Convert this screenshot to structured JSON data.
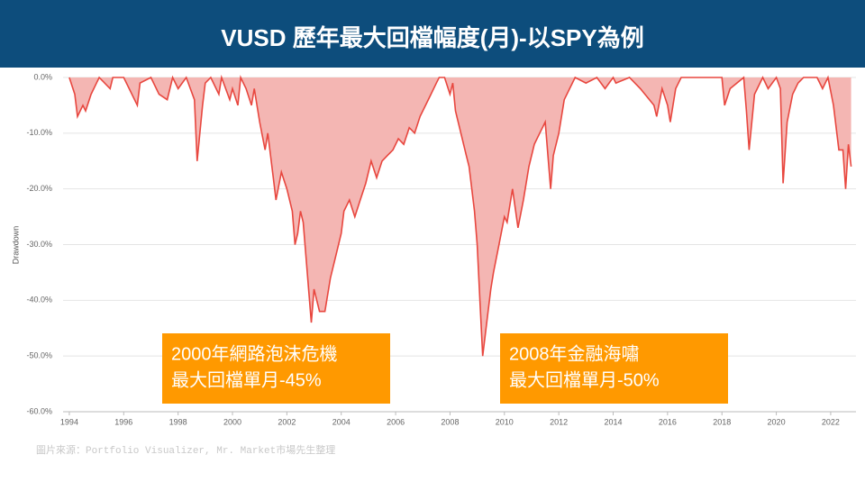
{
  "chart_data": {
    "type": "area",
    "title": "VUSD 歷年最大回檔幅度(月)-以SPY為例",
    "ylabel": "Drawdown",
    "source": "圖片來源：Portfolio Visualizer, Mr. Market市場先生整理",
    "annotations": [
      {
        "lines": [
          "2000年網路泡沫危機",
          "最大回檔單月-45%"
        ]
      },
      {
        "lines": [
          "2008年金融海嘯",
          "最大回檔單月-50%"
        ]
      }
    ],
    "color": "#e8473f",
    "fill": "#f4b6b3",
    "grid": true,
    "xlim": [
      1993.77,
      2022.93
    ],
    "xticks": [
      1994,
      1996,
      1998,
      2000,
      2002,
      2004,
      2006,
      2008,
      2010,
      2012,
      2014,
      2016,
      2018,
      2020,
      2022
    ],
    "ylim": [
      -60,
      0
    ],
    "yticks": [
      {
        "value": 0,
        "label": "0.0%"
      },
      {
        "value": -10,
        "label": "-10.0%"
      },
      {
        "value": -20,
        "label": "-20.0%"
      },
      {
        "value": -30,
        "label": "-30.0%"
      },
      {
        "value": -40,
        "label": "-40.0%"
      },
      {
        "value": -50,
        "label": "-50.0%"
      },
      {
        "value": -60,
        "label": "-60.0%"
      }
    ],
    "x": [
      1994.0,
      1994.2,
      1994.3,
      1994.5,
      1994.6,
      1994.8,
      1995.0,
      1995.1,
      1995.5,
      1995.6,
      1996.0,
      1996.5,
      1996.6,
      1997.0,
      1997.3,
      1997.6,
      1997.8,
      1998.0,
      1998.3,
      1998.6,
      1998.7,
      1998.9,
      1999.0,
      1999.2,
      1999.5,
      1999.6,
      1999.9,
      2000.0,
      2000.2,
      2000.3,
      2000.5,
      2000.7,
      2000.8,
      2001.0,
      2001.2,
      2001.3,
      2001.5,
      2001.6,
      2001.8,
      2002.0,
      2002.2,
      2002.3,
      2002.4,
      2002.5,
      2002.6,
      2002.7,
      2002.8,
      2002.9,
      2003.0,
      2003.2,
      2003.4,
      2003.6,
      2003.8,
      2004.0,
      2004.1,
      2004.3,
      2004.5,
      2004.7,
      2004.9,
      2005.1,
      2005.3,
      2005.5,
      2005.7,
      2005.9,
      2006.1,
      2006.3,
      2006.5,
      2006.7,
      2006.9,
      2007.1,
      2007.3,
      2007.5,
      2007.6,
      2007.8,
      2008.0,
      2008.1,
      2008.2,
      2008.4,
      2008.6,
      2008.7,
      2008.9,
      2009.0,
      2009.1,
      2009.2,
      2009.4,
      2009.5,
      2009.6,
      2009.8,
      2010.0,
      2010.1,
      2010.3,
      2010.5,
      2010.7,
      2010.9,
      2011.1,
      2011.3,
      2011.5,
      2011.7,
      2011.8,
      2012.0,
      2012.2,
      2012.4,
      2012.6,
      2013.0,
      2013.4,
      2013.7,
      2014.0,
      2014.1,
      2014.6,
      2015.0,
      2015.5,
      2015.6,
      2015.8,
      2016.0,
      2016.1,
      2016.3,
      2016.5,
      2017.0,
      2018.0,
      2018.1,
      2018.3,
      2018.8,
      2018.9,
      2019.0,
      2019.2,
      2019.5,
      2019.7,
      2020.0,
      2020.15,
      2020.25,
      2020.4,
      2020.6,
      2020.8,
      2021.0,
      2021.5,
      2021.7,
      2021.9,
      2022.1,
      2022.3,
      2022.45,
      2022.55,
      2022.65,
      2022.75
    ],
    "values": [
      0,
      -3,
      -7,
      -5,
      -6,
      -3,
      -1,
      0,
      -2,
      0,
      0,
      -5,
      -1,
      0,
      -3,
      -4,
      0,
      -2,
      0,
      -4,
      -15,
      -5,
      -1,
      0,
      -3,
      0,
      -4,
      -2,
      -5,
      0,
      -2,
      -5,
      -2,
      -8,
      -13,
      -10,
      -18,
      -22,
      -17,
      -20,
      -24,
      -30,
      -28,
      -24,
      -26,
      -32,
      -38,
      -44,
      -38,
      -42,
      -42,
      -36,
      -32,
      -28,
      -24,
      -22,
      -25,
      -22,
      -19,
      -15,
      -18,
      -15,
      -14,
      -13,
      -11,
      -12,
      -9,
      -10,
      -7,
      -5,
      -3,
      -1,
      0,
      0,
      -3,
      -1,
      -6,
      -10,
      -14,
      -16,
      -24,
      -30,
      -40,
      -50,
      -42,
      -38,
      -35,
      -30,
      -25,
      -26,
      -20,
      -27,
      -22,
      -16,
      -12,
      -10,
      -8,
      -20,
      -14,
      -10,
      -4,
      -2,
      0,
      -1,
      0,
      -2,
      0,
      -1,
      0,
      -2,
      -5,
      -7,
      -2,
      -5,
      -8,
      -2,
      0,
      0,
      0,
      -5,
      -2,
      0,
      -6,
      -13,
      -3,
      0,
      -2,
      0,
      -2,
      -19,
      -8,
      -3,
      -1,
      0,
      0,
      -2,
      0,
      -5,
      -13,
      -13,
      -20,
      -12,
      -16
    ]
  }
}
